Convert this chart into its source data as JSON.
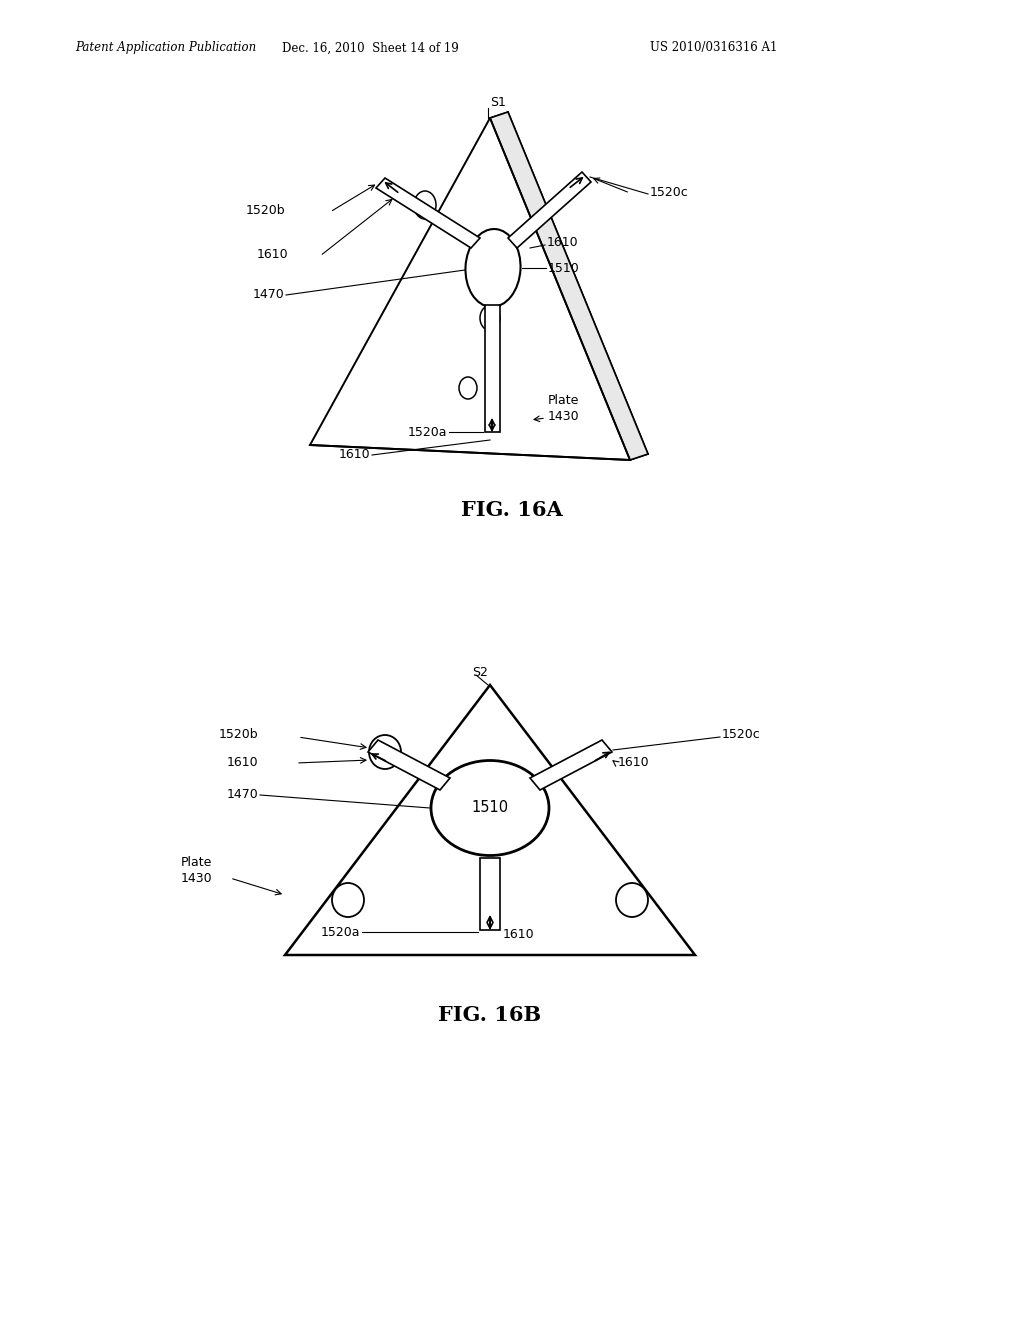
{
  "bg_color": "#ffffff",
  "header_left": "Patent Application Publication",
  "header_mid": "Dec. 16, 2010  Sheet 14 of 19",
  "header_right": "US 2010/0316316 A1",
  "fig_a_label": "FIG. 16A",
  "fig_b_label": "FIG. 16B",
  "lw_tri": 1.4,
  "lw_arm": 1.2,
  "lw_hole": 1.1,
  "lw_oval": 1.5,
  "fontsize_label": 9.0,
  "fontsize_caption": 15,
  "fontsize_header": 8.5
}
